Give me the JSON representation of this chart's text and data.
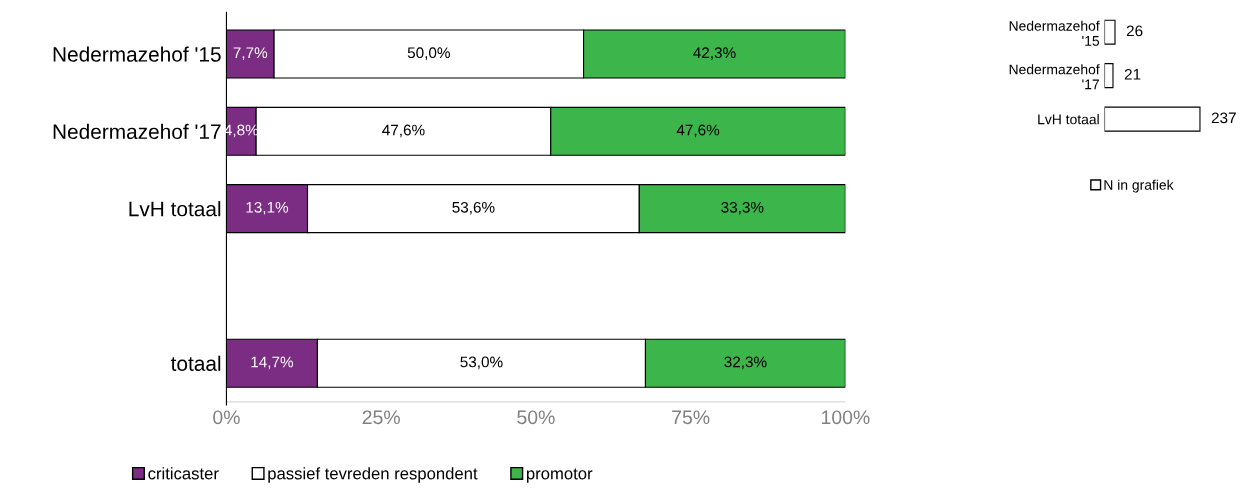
{
  "chart_data": [
    {
      "type": "bar",
      "orientation": "horizontal",
      "stacked": true,
      "categories": [
        "Nedermazehof '15",
        "Nedermazehof '17",
        "LvH totaal",
        null,
        "totaal"
      ],
      "series": [
        {
          "name": "criticaster",
          "color": "#7b2d83",
          "values": [
            7.7,
            4.8,
            13.1,
            null,
            14.7
          ],
          "value_labels": [
            "7,7%",
            "4,8%",
            "13,1%",
            null,
            "14,7%"
          ]
        },
        {
          "name": "passief tevreden respondent",
          "color": "#ffffff",
          "values": [
            50.0,
            47.6,
            53.6,
            null,
            53.0
          ],
          "value_labels": [
            "50,0%",
            "47,6%",
            "53,6%",
            null,
            "53,0%"
          ]
        },
        {
          "name": "promotor",
          "color": "#3cb54a",
          "values": [
            42.3,
            47.6,
            33.3,
            null,
            32.3
          ],
          "value_labels": [
            "42,3%",
            "47,6%",
            "33,3%",
            null,
            "32,3%"
          ]
        }
      ],
      "xlim": [
        0,
        100
      ],
      "xticks": [
        {
          "value": 0,
          "label": "0%"
        },
        {
          "value": 25,
          "label": "25%"
        },
        {
          "value": 50,
          "label": "50%"
        },
        {
          "value": 75,
          "label": "75%"
        },
        {
          "value": 100,
          "label": "100%"
        }
      ],
      "grid": false,
      "legend": "bottom"
    },
    {
      "type": "bar",
      "orientation": "horizontal",
      "categories": [
        "Nedermazehof\n'15",
        "Nedermazehof\n'17",
        "LvH totaal"
      ],
      "series": [
        {
          "name": "N in grafiek",
          "color": "#ffffff",
          "values": [
            26,
            21,
            237
          ]
        }
      ],
      "data_labels": true,
      "tick_labels": "y",
      "grid": false,
      "legend": "bottom"
    }
  ]
}
